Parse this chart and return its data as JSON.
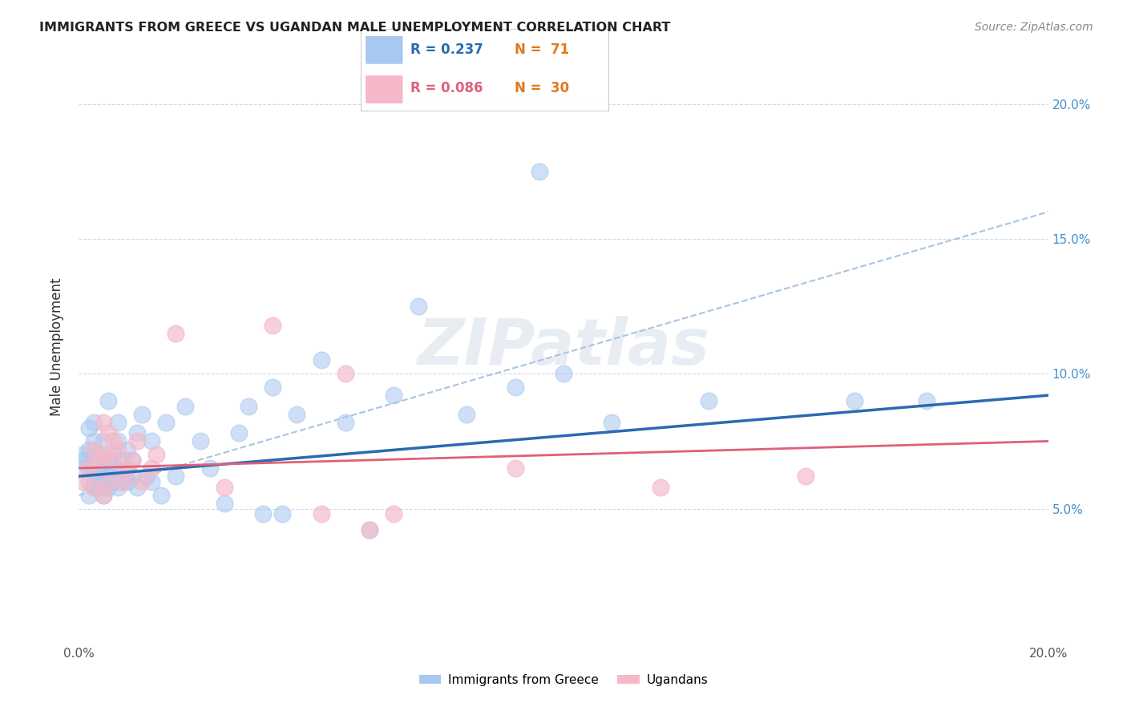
{
  "title": "IMMIGRANTS FROM GREECE VS UGANDAN MALE UNEMPLOYMENT CORRELATION CHART",
  "source": "Source: ZipAtlas.com",
  "ylabel": "Male Unemployment",
  "xlim": [
    0.0,
    0.2
  ],
  "ylim": [
    0.0,
    0.22
  ],
  "watermark": "ZIPatlas",
  "blue_color": "#a8c8f0",
  "pink_color": "#f5b8c8",
  "blue_line_color": "#2a6ab0",
  "pink_line_color": "#e0607a",
  "dashed_line_color": "#aac4e0",
  "background_color": "#ffffff",
  "grid_color": "#d0d8e8",
  "right_tick_color": "#4090d0",
  "blue_scatter_x": [
    0.001,
    0.001,
    0.001,
    0.002,
    0.002,
    0.002,
    0.002,
    0.002,
    0.003,
    0.003,
    0.003,
    0.003,
    0.003,
    0.004,
    0.004,
    0.004,
    0.004,
    0.005,
    0.005,
    0.005,
    0.005,
    0.006,
    0.006,
    0.006,
    0.006,
    0.007,
    0.007,
    0.007,
    0.008,
    0.008,
    0.008,
    0.008,
    0.009,
    0.009,
    0.01,
    0.01,
    0.01,
    0.011,
    0.011,
    0.012,
    0.012,
    0.013,
    0.014,
    0.015,
    0.015,
    0.017,
    0.018,
    0.02,
    0.022,
    0.025,
    0.027,
    0.03,
    0.033,
    0.035,
    0.038,
    0.04,
    0.042,
    0.045,
    0.05,
    0.055,
    0.06,
    0.065,
    0.07,
    0.08,
    0.09,
    0.095,
    0.1,
    0.11,
    0.13,
    0.16,
    0.175
  ],
  "blue_scatter_y": [
    0.065,
    0.068,
    0.07,
    0.055,
    0.06,
    0.065,
    0.072,
    0.08,
    0.058,
    0.062,
    0.068,
    0.075,
    0.082,
    0.058,
    0.062,
    0.065,
    0.07,
    0.055,
    0.06,
    0.065,
    0.075,
    0.058,
    0.062,
    0.068,
    0.09,
    0.06,
    0.065,
    0.07,
    0.058,
    0.062,
    0.075,
    0.082,
    0.06,
    0.068,
    0.06,
    0.065,
    0.072,
    0.062,
    0.068,
    0.058,
    0.078,
    0.085,
    0.062,
    0.06,
    0.075,
    0.055,
    0.082,
    0.062,
    0.088,
    0.075,
    0.065,
    0.052,
    0.078,
    0.088,
    0.048,
    0.095,
    0.048,
    0.085,
    0.105,
    0.082,
    0.042,
    0.092,
    0.125,
    0.085,
    0.095,
    0.175,
    0.1,
    0.082,
    0.09,
    0.09,
    0.09
  ],
  "pink_scatter_x": [
    0.001,
    0.002,
    0.003,
    0.003,
    0.004,
    0.005,
    0.005,
    0.005,
    0.006,
    0.006,
    0.007,
    0.007,
    0.008,
    0.009,
    0.01,
    0.011,
    0.012,
    0.013,
    0.015,
    0.016,
    0.02,
    0.03,
    0.04,
    0.05,
    0.055,
    0.06,
    0.065,
    0.09,
    0.12,
    0.15
  ],
  "pink_scatter_y": [
    0.06,
    0.065,
    0.058,
    0.072,
    0.068,
    0.055,
    0.07,
    0.082,
    0.06,
    0.078,
    0.068,
    0.075,
    0.072,
    0.06,
    0.065,
    0.068,
    0.075,
    0.06,
    0.065,
    0.07,
    0.115,
    0.058,
    0.118,
    0.048,
    0.1,
    0.042,
    0.048,
    0.065,
    0.058,
    0.062
  ],
  "blue_line_x": [
    0.0,
    0.2
  ],
  "blue_line_y": [
    0.062,
    0.092
  ],
  "pink_line_x": [
    0.0,
    0.2
  ],
  "pink_line_y": [
    0.065,
    0.075
  ],
  "dashed_line_x": [
    0.0,
    0.2
  ],
  "dashed_line_y": [
    0.055,
    0.16
  ]
}
